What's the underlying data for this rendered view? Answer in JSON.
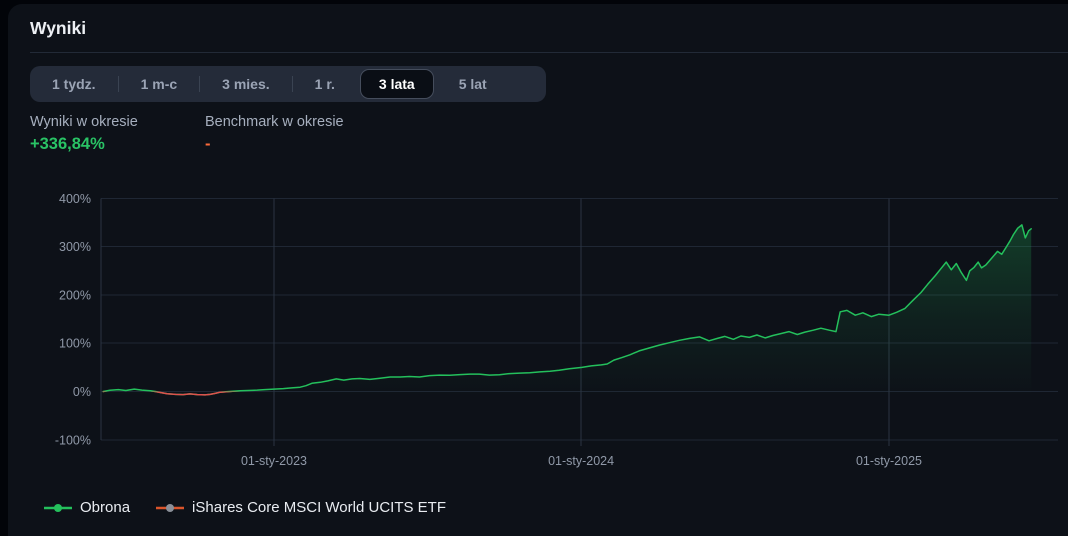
{
  "page": {
    "title": "Wyniki"
  },
  "tabs": [
    {
      "label": "1 tydz.",
      "active": false
    },
    {
      "label": "1 m-c",
      "active": false
    },
    {
      "label": "3 mies.",
      "active": false
    },
    {
      "label": "1 r.",
      "active": false
    },
    {
      "label": "3 lata",
      "active": true
    },
    {
      "label": "5 lat",
      "active": false
    }
  ],
  "stats": {
    "period_result": {
      "label": "Wyniki w okresie",
      "value": "+336,84%",
      "color": "#29c365"
    },
    "benchmark_result": {
      "label": "Benchmark w okresie",
      "value": "-",
      "color": "#fb6a3a"
    }
  },
  "legend": [
    {
      "label": "Obrona",
      "line_color": "#24c05c",
      "dot_color": "#24c05c"
    },
    {
      "label": "iShares Core MSCI World UCITS ETF",
      "line_color": "#d9542b",
      "dot_color": "#8a8f98"
    }
  ],
  "chart_data": {
    "type": "line",
    "title": "",
    "xlabel": "",
    "ylabel": "",
    "grid": true,
    "legend_position": "bottom",
    "ylim": [
      -100,
      400
    ],
    "y_ticks": [
      {
        "value": 400,
        "label": "400%"
      },
      {
        "value": 300,
        "label": "300%"
      },
      {
        "value": 200,
        "label": "200%"
      },
      {
        "value": 100,
        "label": "100%"
      },
      {
        "value": 0,
        "label": "0%"
      },
      {
        "value": -100,
        "label": "-100%"
      }
    ],
    "x_ticks": [
      {
        "date": "2023-01-01",
        "label": "01-sty-2023"
      },
      {
        "date": "2024-01-01",
        "label": "01-sty-2024"
      },
      {
        "date": "2025-01-01",
        "label": "01-sty-2025"
      }
    ],
    "colors": {
      "positive": "#24c05c",
      "negative": "#e0504c",
      "grid_h": "#1f2734",
      "grid_v": "#2a3442",
      "axis_text": "#9099a8"
    },
    "series": [
      {
        "name": "Obrona",
        "color": "#24c05c",
        "below_zero_color": "#e0504c",
        "area_fill": true,
        "points": [
          [
            "2022-06-12",
            0
          ],
          [
            "2022-06-20",
            2.5
          ],
          [
            "2022-06-30",
            4
          ],
          [
            "2022-07-09",
            2
          ],
          [
            "2022-07-19",
            5
          ],
          [
            "2022-07-28",
            3
          ],
          [
            "2022-08-07",
            1.5
          ],
          [
            "2022-08-13",
            0
          ],
          [
            "2022-08-19",
            -2
          ],
          [
            "2022-08-27",
            -4.5
          ],
          [
            "2022-09-06",
            -6
          ],
          [
            "2022-09-15",
            -6.5
          ],
          [
            "2022-09-23",
            -5
          ],
          [
            "2022-10-02",
            -6.5
          ],
          [
            "2022-10-11",
            -7
          ],
          [
            "2022-10-17",
            -6
          ],
          [
            "2022-10-23",
            -4
          ],
          [
            "2022-10-29",
            -1.5
          ],
          [
            "2022-11-05",
            -0.5
          ],
          [
            "2022-11-13",
            0.5
          ],
          [
            "2022-11-22",
            1.5
          ],
          [
            "2022-12-01",
            2
          ],
          [
            "2022-12-12",
            3
          ],
          [
            "2022-12-21",
            4
          ],
          [
            "2023-01-01",
            5
          ],
          [
            "2023-01-12",
            6
          ],
          [
            "2023-01-22",
            7.5
          ],
          [
            "2023-02-01",
            9
          ],
          [
            "2023-02-08",
            12
          ],
          [
            "2023-02-15",
            17
          ],
          [
            "2023-02-25",
            19
          ],
          [
            "2023-03-06",
            22
          ],
          [
            "2023-03-16",
            26
          ],
          [
            "2023-03-25",
            23.5
          ],
          [
            "2023-04-04",
            26
          ],
          [
            "2023-04-13",
            27
          ],
          [
            "2023-04-25",
            25
          ],
          [
            "2023-05-07",
            27.5
          ],
          [
            "2023-05-19",
            30
          ],
          [
            "2023-05-31",
            30
          ],
          [
            "2023-06-11",
            31
          ],
          [
            "2023-06-23",
            30
          ],
          [
            "2023-07-05",
            33
          ],
          [
            "2023-07-17",
            34
          ],
          [
            "2023-07-29",
            33.5
          ],
          [
            "2023-08-10",
            35
          ],
          [
            "2023-08-22",
            36
          ],
          [
            "2023-09-02",
            36
          ],
          [
            "2023-09-14",
            34
          ],
          [
            "2023-09-26",
            34.5
          ],
          [
            "2023-10-08",
            37
          ],
          [
            "2023-10-20",
            38
          ],
          [
            "2023-11-01",
            39
          ],
          [
            "2023-11-13",
            40.5
          ],
          [
            "2023-11-25",
            42
          ],
          [
            "2023-12-06",
            44
          ],
          [
            "2023-12-18",
            47
          ],
          [
            "2024-01-02",
            50
          ],
          [
            "2024-01-13",
            53
          ],
          [
            "2024-01-25",
            55
          ],
          [
            "2024-02-01",
            57
          ],
          [
            "2024-02-09",
            65
          ],
          [
            "2024-02-18",
            70
          ],
          [
            "2024-02-28",
            76
          ],
          [
            "2024-03-10",
            84
          ],
          [
            "2024-03-22",
            90
          ],
          [
            "2024-04-03",
            96
          ],
          [
            "2024-04-15",
            101
          ],
          [
            "2024-04-27",
            106
          ],
          [
            "2024-05-09",
            110
          ],
          [
            "2024-05-21",
            113
          ],
          [
            "2024-06-01",
            105
          ],
          [
            "2024-06-11",
            110
          ],
          [
            "2024-06-20",
            114
          ],
          [
            "2024-06-30",
            108
          ],
          [
            "2024-07-09",
            115
          ],
          [
            "2024-07-19",
            112
          ],
          [
            "2024-07-28",
            117
          ],
          [
            "2024-08-07",
            111
          ],
          [
            "2024-08-16",
            116
          ],
          [
            "2024-08-26",
            120
          ],
          [
            "2024-09-04",
            124
          ],
          [
            "2024-09-14",
            118
          ],
          [
            "2024-09-23",
            123
          ],
          [
            "2024-10-03",
            127
          ],
          [
            "2024-10-12",
            131
          ],
          [
            "2024-10-22",
            127
          ],
          [
            "2024-10-30",
            124
          ],
          [
            "2024-11-04",
            165
          ],
          [
            "2024-11-12",
            168
          ],
          [
            "2024-11-22",
            158
          ],
          [
            "2024-12-01",
            163
          ],
          [
            "2024-12-11",
            155
          ],
          [
            "2024-12-20",
            160
          ],
          [
            "2025-01-01",
            158
          ],
          [
            "2025-01-10",
            164
          ],
          [
            "2025-01-20",
            172
          ],
          [
            "2025-01-29",
            188
          ],
          [
            "2025-02-08",
            205
          ],
          [
            "2025-02-16",
            222
          ],
          [
            "2025-02-25",
            240
          ],
          [
            "2025-03-04",
            255
          ],
          [
            "2025-03-10",
            268
          ],
          [
            "2025-03-16",
            252
          ],
          [
            "2025-03-22",
            265
          ],
          [
            "2025-03-28",
            246
          ],
          [
            "2025-04-03",
            230
          ],
          [
            "2025-04-07",
            250
          ],
          [
            "2025-04-12",
            257
          ],
          [
            "2025-04-17",
            268
          ],
          [
            "2025-04-21",
            256
          ],
          [
            "2025-04-26",
            262
          ],
          [
            "2025-05-01",
            272
          ],
          [
            "2025-05-06",
            282
          ],
          [
            "2025-05-10",
            290
          ],
          [
            "2025-05-15",
            284
          ],
          [
            "2025-05-20",
            298
          ],
          [
            "2025-05-25",
            312
          ],
          [
            "2025-05-29",
            325
          ],
          [
            "2025-06-03",
            338
          ],
          [
            "2025-06-08",
            345
          ],
          [
            "2025-06-12",
            318
          ],
          [
            "2025-06-16",
            333
          ],
          [
            "2025-06-19",
            336.84
          ]
        ]
      },
      {
        "name": "iShares Core MSCI World UCITS ETF",
        "color": "#d9542b",
        "points": []
      }
    ]
  }
}
